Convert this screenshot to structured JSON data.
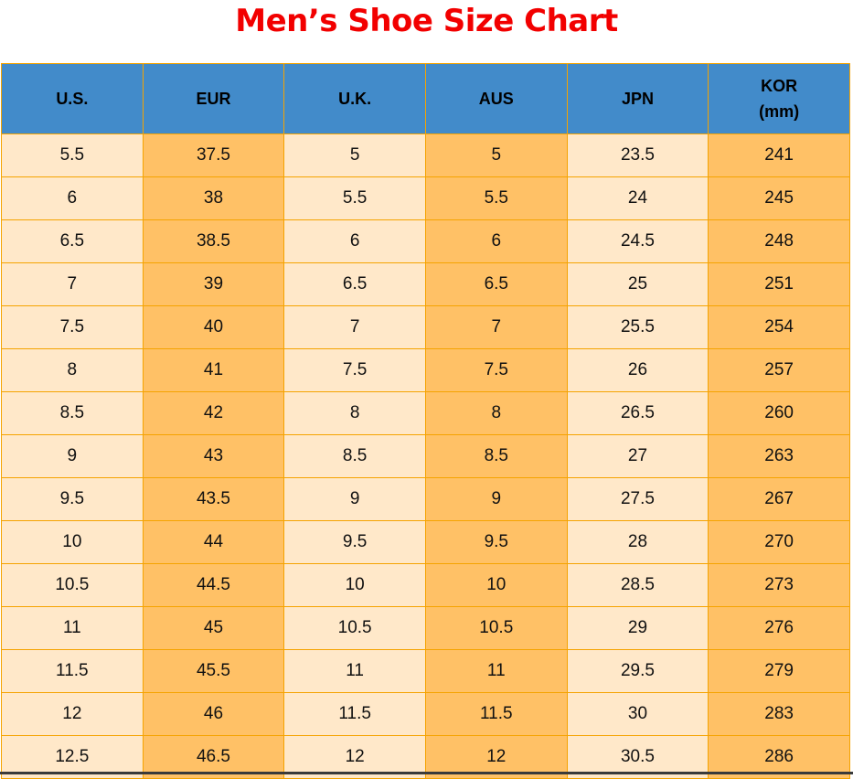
{
  "title": "Men’s Shoe Size Chart",
  "columns": [
    "U.S.",
    "EUR",
    "U.K.",
    "AUS",
    "JPN",
    "KOR\n(mm)"
  ],
  "rows": [
    [
      "5.5",
      "37.5",
      "5",
      "5",
      "23.5",
      "241"
    ],
    [
      "6",
      "38",
      "5.5",
      "5.5",
      "24",
      "245"
    ],
    [
      "6.5",
      "38.5",
      "6",
      "6",
      "24.5",
      "248"
    ],
    [
      "7",
      "39",
      "6.5",
      "6.5",
      "25",
      "251"
    ],
    [
      "7.5",
      "40",
      "7",
      "7",
      "25.5",
      "254"
    ],
    [
      "8",
      "41",
      "7.5",
      "7.5",
      "26",
      "257"
    ],
    [
      "8.5",
      "42",
      "8",
      "8",
      "26.5",
      "260"
    ],
    [
      "9",
      "43",
      "8.5",
      "8.5",
      "27",
      "263"
    ],
    [
      "9.5",
      "43.5",
      "9",
      "9",
      "27.5",
      "267"
    ],
    [
      "10",
      "44",
      "9.5",
      "9.5",
      "28",
      "270"
    ],
    [
      "10.5",
      "44.5",
      "10",
      "10",
      "28.5",
      "273"
    ],
    [
      "11",
      "45",
      "10.5",
      "10.5",
      "29",
      "276"
    ],
    [
      "11.5",
      "45.5",
      "11",
      "11",
      "29.5",
      "279"
    ],
    [
      "12",
      "46",
      "11.5",
      "11.5",
      "30",
      "283"
    ],
    [
      "12.5",
      "46.5",
      "12",
      "12",
      "30.5",
      "286"
    ]
  ],
  "colors": {
    "header": "#428bca",
    "odd_column": "#ffe8c9",
    "even_column": "#ffc166",
    "border": "#f5a300",
    "title": "#f20000"
  }
}
